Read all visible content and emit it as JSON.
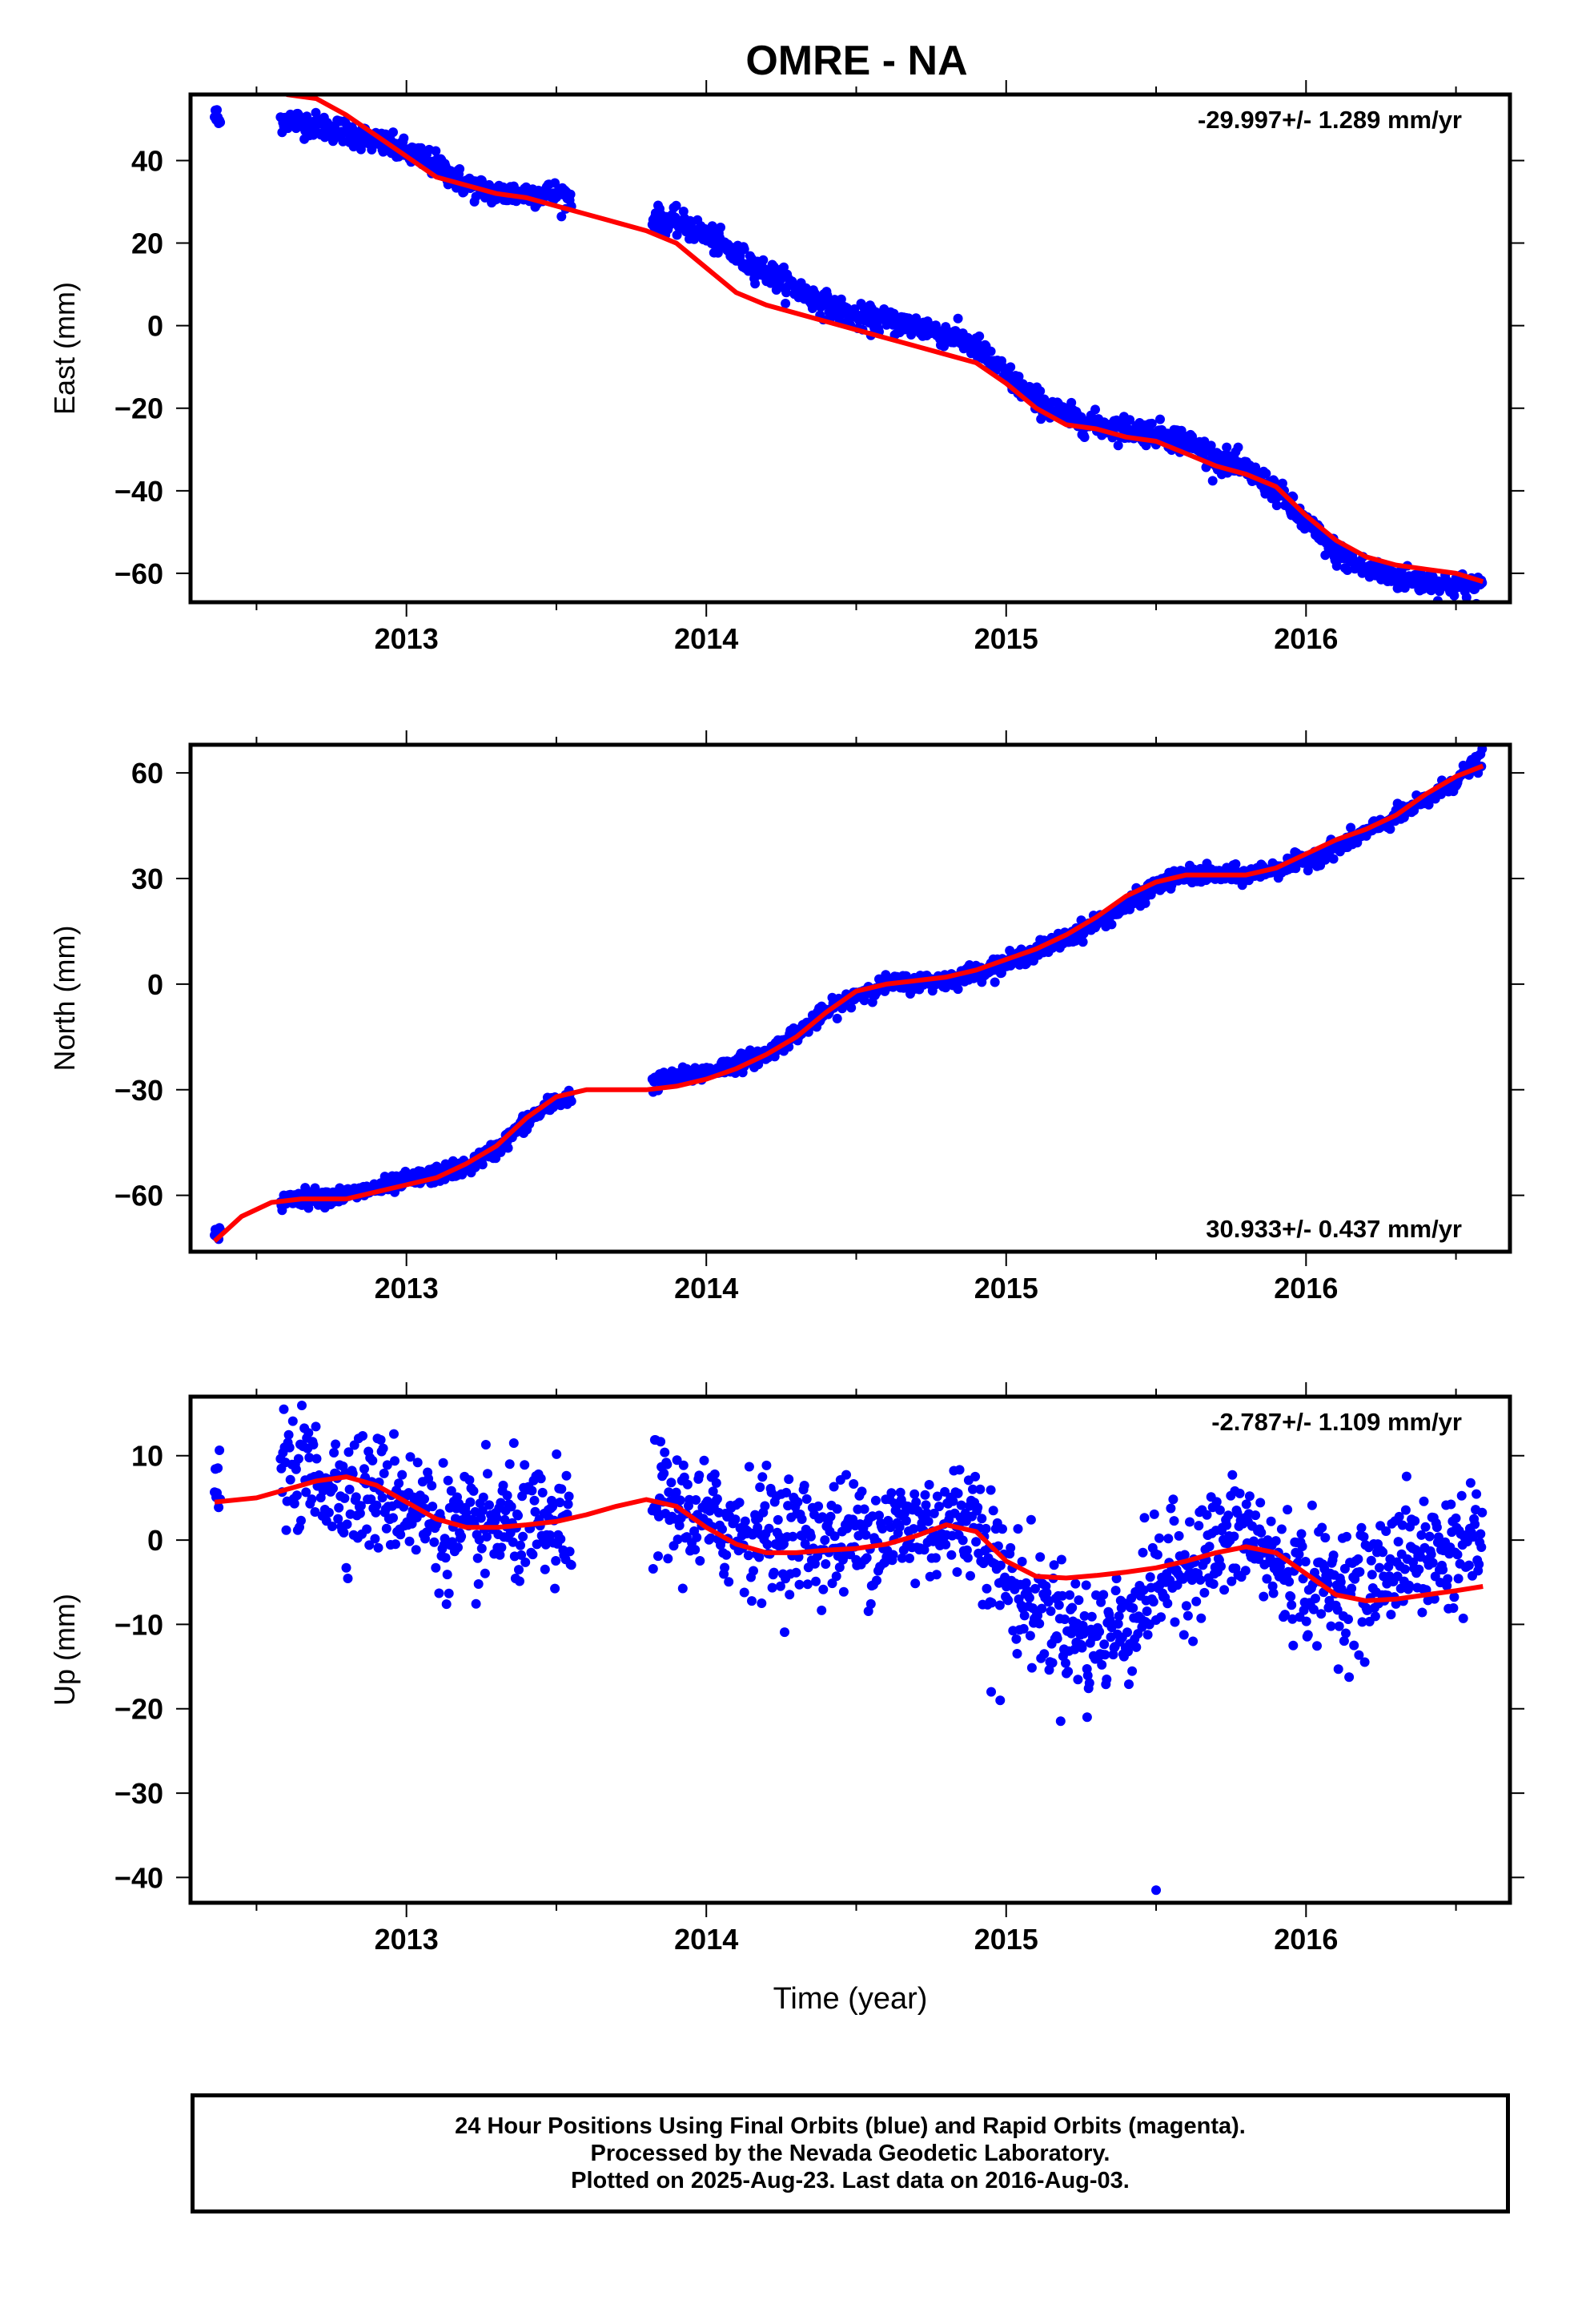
{
  "title": "OMRE - NA",
  "xlabel": "Time (year)",
  "colors": {
    "data": "#0000ff",
    "fit": "#ff0000",
    "frame": "#000000"
  },
  "footer": {
    "line1": "24 Hour Positions Using Final Orbits (blue) and Rapid Orbits (magenta).",
    "line2": "Processed by the Nevada Geodetic Laboratory.",
    "line3": "Plotted on 2025-Aug-23. Last data on 2016-Aug-03."
  },
  "chart_data": [
    {
      "type": "scatter",
      "component": "east",
      "ylabel": "East (mm)",
      "rate_label": "-29.997+/- 1.289 mm/yr",
      "rate_position": "top-right",
      "xlim": [
        2012.28,
        2016.68
      ],
      "ylim": [
        -67,
        56
      ],
      "xticks": [
        2013,
        2014,
        2015,
        2016
      ],
      "yticks": [
        -60,
        -40,
        -20,
        0,
        20,
        40
      ],
      "segments": [
        [
          2012.36,
          2012.38
        ],
        [
          2012.58,
          2013.55
        ],
        [
          2013.82,
          2016.59
        ]
      ],
      "trend": [
        [
          2012.36,
          51
        ],
        [
          2012.38,
          49
        ],
        [
          2012.6,
          50
        ],
        [
          2012.8,
          47
        ],
        [
          2013.0,
          42
        ],
        [
          2013.1,
          39
        ],
        [
          2013.2,
          34
        ],
        [
          2013.3,
          32
        ],
        [
          2013.4,
          32
        ],
        [
          2013.5,
          32
        ],
        [
          2013.55,
          31
        ],
        [
          2013.82,
          26
        ],
        [
          2013.9,
          25
        ],
        [
          2014.0,
          22
        ],
        [
          2014.1,
          17
        ],
        [
          2014.2,
          13
        ],
        [
          2014.3,
          9
        ],
        [
          2014.4,
          5
        ],
        [
          2014.5,
          2
        ],
        [
          2014.6,
          1
        ],
        [
          2014.7,
          0
        ],
        [
          2014.8,
          -2
        ],
        [
          2014.9,
          -5
        ],
        [
          2015.0,
          -12
        ],
        [
          2015.1,
          -18
        ],
        [
          2015.2,
          -22
        ],
        [
          2015.3,
          -24
        ],
        [
          2015.4,
          -25
        ],
        [
          2015.5,
          -26
        ],
        [
          2015.6,
          -28
        ],
        [
          2015.7,
          -32
        ],
        [
          2015.8,
          -35
        ],
        [
          2015.9,
          -40
        ],
        [
          2016.0,
          -48
        ],
        [
          2016.1,
          -55
        ],
        [
          2016.2,
          -59
        ],
        [
          2016.3,
          -61
        ],
        [
          2016.4,
          -62
        ],
        [
          2016.5,
          -63
        ],
        [
          2016.59,
          -63
        ]
      ],
      "scatter_sd": 1.5,
      "fit": [
        [
          2012.6,
          56
        ],
        [
          2012.7,
          55
        ],
        [
          2012.8,
          51
        ],
        [
          2012.9,
          46
        ],
        [
          2013.0,
          41
        ],
        [
          2013.1,
          36
        ],
        [
          2013.2,
          34
        ],
        [
          2013.3,
          32
        ],
        [
          2013.4,
          31
        ],
        [
          2013.5,
          29
        ],
        [
          2013.6,
          27
        ],
        [
          2013.7,
          25
        ],
        [
          2013.8,
          23
        ],
        [
          2013.9,
          20
        ],
        [
          2014.0,
          14
        ],
        [
          2014.1,
          8
        ],
        [
          2014.2,
          5
        ],
        [
          2014.3,
          3
        ],
        [
          2014.4,
          1
        ],
        [
          2014.5,
          -1
        ],
        [
          2014.6,
          -3
        ],
        [
          2014.7,
          -5
        ],
        [
          2014.8,
          -7
        ],
        [
          2014.9,
          -9
        ],
        [
          2015.0,
          -14
        ],
        [
          2015.1,
          -20
        ],
        [
          2015.2,
          -24
        ],
        [
          2015.3,
          -25
        ],
        [
          2015.4,
          -27
        ],
        [
          2015.5,
          -28
        ],
        [
          2015.6,
          -31
        ],
        [
          2015.7,
          -34
        ],
        [
          2015.8,
          -36
        ],
        [
          2015.9,
          -39
        ],
        [
          2016.0,
          -46
        ],
        [
          2016.1,
          -52
        ],
        [
          2016.2,
          -56
        ],
        [
          2016.3,
          -58
        ],
        [
          2016.4,
          -59
        ],
        [
          2016.5,
          -60
        ],
        [
          2016.59,
          -62
        ]
      ]
    },
    {
      "type": "scatter",
      "component": "north",
      "ylabel": "North (mm)",
      "rate_label": "30.933+/- 0.437 mm/yr",
      "rate_position": "bottom-right",
      "xlim": [
        2012.28,
        2016.68
      ],
      "ylim": [
        -76,
        68
      ],
      "xticks": [
        2013,
        2014,
        2015,
        2016
      ],
      "yticks": [
        -60,
        -30,
        0,
        30,
        60
      ],
      "segments": [
        [
          2012.36,
          2012.38
        ],
        [
          2012.58,
          2013.55
        ],
        [
          2013.82,
          2016.59
        ]
      ],
      "trend": [
        [
          2012.36,
          -72
        ],
        [
          2012.38,
          -71
        ],
        [
          2012.6,
          -61
        ],
        [
          2012.8,
          -60
        ],
        [
          2013.0,
          -56
        ],
        [
          2013.2,
          -52
        ],
        [
          2013.3,
          -47
        ],
        [
          2013.4,
          -39
        ],
        [
          2013.5,
          -33
        ],
        [
          2013.55,
          -32
        ],
        [
          2013.82,
          -28
        ],
        [
          2014.0,
          -25
        ],
        [
          2014.2,
          -20
        ],
        [
          2014.4,
          -8
        ],
        [
          2014.5,
          -3
        ],
        [
          2014.6,
          0
        ],
        [
          2014.8,
          1
        ],
        [
          2015.0,
          6
        ],
        [
          2015.2,
          13
        ],
        [
          2015.4,
          22
        ],
        [
          2015.5,
          28
        ],
        [
          2015.6,
          31
        ],
        [
          2015.8,
          31
        ],
        [
          2016.0,
          35
        ],
        [
          2016.2,
          43
        ],
        [
          2016.4,
          52
        ],
        [
          2016.5,
          58
        ],
        [
          2016.59,
          64
        ]
      ],
      "scatter_sd": 1.2,
      "fit": [
        [
          2012.36,
          -73
        ],
        [
          2012.45,
          -66
        ],
        [
          2012.55,
          -62
        ],
        [
          2012.65,
          -61
        ],
        [
          2012.8,
          -61
        ],
        [
          2012.9,
          -59
        ],
        [
          2013.0,
          -57
        ],
        [
          2013.1,
          -55
        ],
        [
          2013.2,
          -51
        ],
        [
          2013.3,
          -46
        ],
        [
          2013.4,
          -38
        ],
        [
          2013.5,
          -32
        ],
        [
          2013.6,
          -30
        ],
        [
          2013.7,
          -30
        ],
        [
          2013.8,
          -30
        ],
        [
          2013.9,
          -29
        ],
        [
          2014.0,
          -27
        ],
        [
          2014.1,
          -24
        ],
        [
          2014.2,
          -20
        ],
        [
          2014.3,
          -15
        ],
        [
          2014.4,
          -8
        ],
        [
          2014.5,
          -2
        ],
        [
          2014.6,
          0
        ],
        [
          2014.7,
          1
        ],
        [
          2014.8,
          2
        ],
        [
          2014.9,
          4
        ],
        [
          2015.0,
          7
        ],
        [
          2015.1,
          10
        ],
        [
          2015.2,
          14
        ],
        [
          2015.3,
          19
        ],
        [
          2015.4,
          25
        ],
        [
          2015.5,
          29
        ],
        [
          2015.6,
          31
        ],
        [
          2015.7,
          31
        ],
        [
          2015.8,
          31
        ],
        [
          2015.9,
          33
        ],
        [
          2016.0,
          37
        ],
        [
          2016.1,
          41
        ],
        [
          2016.2,
          44
        ],
        [
          2016.3,
          48
        ],
        [
          2016.4,
          54
        ],
        [
          2016.5,
          59
        ],
        [
          2016.59,
          62
        ]
      ]
    },
    {
      "type": "scatter",
      "component": "up",
      "ylabel": "Up (mm)",
      "rate_label": "-2.787+/- 1.109 mm/yr",
      "rate_position": "top-right",
      "xlim": [
        2012.28,
        2016.68
      ],
      "ylim": [
        -43,
        17
      ],
      "xticks": [
        2013,
        2014,
        2015,
        2016
      ],
      "yticks": [
        -40,
        -30,
        -20,
        -10,
        0,
        10
      ],
      "segments": [
        [
          2012.36,
          2012.38
        ],
        [
          2012.58,
          2013.55
        ],
        [
          2013.82,
          2016.59
        ]
      ],
      "trend": [
        [
          2012.36,
          5
        ],
        [
          2012.38,
          6
        ],
        [
          2012.6,
          9
        ],
        [
          2012.8,
          6
        ],
        [
          2013.0,
          5
        ],
        [
          2013.1,
          2
        ],
        [
          2013.2,
          0
        ],
        [
          2013.3,
          2
        ],
        [
          2013.5,
          1
        ],
        [
          2013.55,
          1
        ],
        [
          2013.82,
          5
        ],
        [
          2014.0,
          2
        ],
        [
          2014.2,
          1
        ],
        [
          2014.4,
          0
        ],
        [
          2014.6,
          1
        ],
        [
          2014.8,
          2
        ],
        [
          2014.9,
          3
        ],
        [
          2015.0,
          -5
        ],
        [
          2015.1,
          -8
        ],
        [
          2015.2,
          -10
        ],
        [
          2015.3,
          -12
        ],
        [
          2015.4,
          -10
        ],
        [
          2015.5,
          -5
        ],
        [
          2015.6,
          -3
        ],
        [
          2015.7,
          -1
        ],
        [
          2015.8,
          1
        ],
        [
          2015.9,
          -3
        ],
        [
          2016.0,
          -5
        ],
        [
          2016.2,
          -6
        ],
        [
          2016.3,
          -2
        ],
        [
          2016.4,
          -2
        ],
        [
          2016.59,
          0
        ]
      ],
      "scatter_sd": 3.5,
      "outliers": [
        [
          2015.5,
          -41.5
        ],
        [
          2014.95,
          -18
        ],
        [
          2014.98,
          -19
        ],
        [
          2015.27,
          -21
        ]
      ],
      "fit": [
        [
          2012.36,
          4.5
        ],
        [
          2012.5,
          5
        ],
        [
          2012.6,
          6
        ],
        [
          2012.7,
          7
        ],
        [
          2012.8,
          7.5
        ],
        [
          2012.9,
          6.5
        ],
        [
          2013.0,
          4.5
        ],
        [
          2013.1,
          2.5
        ],
        [
          2013.2,
          1.5
        ],
        [
          2013.3,
          1.5
        ],
        [
          2013.4,
          1.8
        ],
        [
          2013.5,
          2.2
        ],
        [
          2013.6,
          3
        ],
        [
          2013.7,
          4
        ],
        [
          2013.8,
          4.8
        ],
        [
          2013.9,
          4
        ],
        [
          2014.0,
          1.5
        ],
        [
          2014.1,
          -0.5
        ],
        [
          2014.2,
          -1.5
        ],
        [
          2014.3,
          -1.5
        ],
        [
          2014.4,
          -1.2
        ],
        [
          2014.5,
          -1
        ],
        [
          2014.6,
          -0.5
        ],
        [
          2014.7,
          0.5
        ],
        [
          2014.8,
          1.8
        ],
        [
          2014.9,
          1
        ],
        [
          2015.0,
          -2.5
        ],
        [
          2015.1,
          -4.3
        ],
        [
          2015.2,
          -4.5
        ],
        [
          2015.3,
          -4.2
        ],
        [
          2015.4,
          -3.8
        ],
        [
          2015.5,
          -3.3
        ],
        [
          2015.6,
          -2.5
        ],
        [
          2015.7,
          -1.5
        ],
        [
          2015.8,
          -0.8
        ],
        [
          2015.9,
          -1.5
        ],
        [
          2016.0,
          -4
        ],
        [
          2016.1,
          -6.5
        ],
        [
          2016.2,
          -7.2
        ],
        [
          2016.3,
          -7
        ],
        [
          2016.4,
          -6.5
        ],
        [
          2016.5,
          -6
        ],
        [
          2016.59,
          -5.5
        ]
      ]
    }
  ]
}
